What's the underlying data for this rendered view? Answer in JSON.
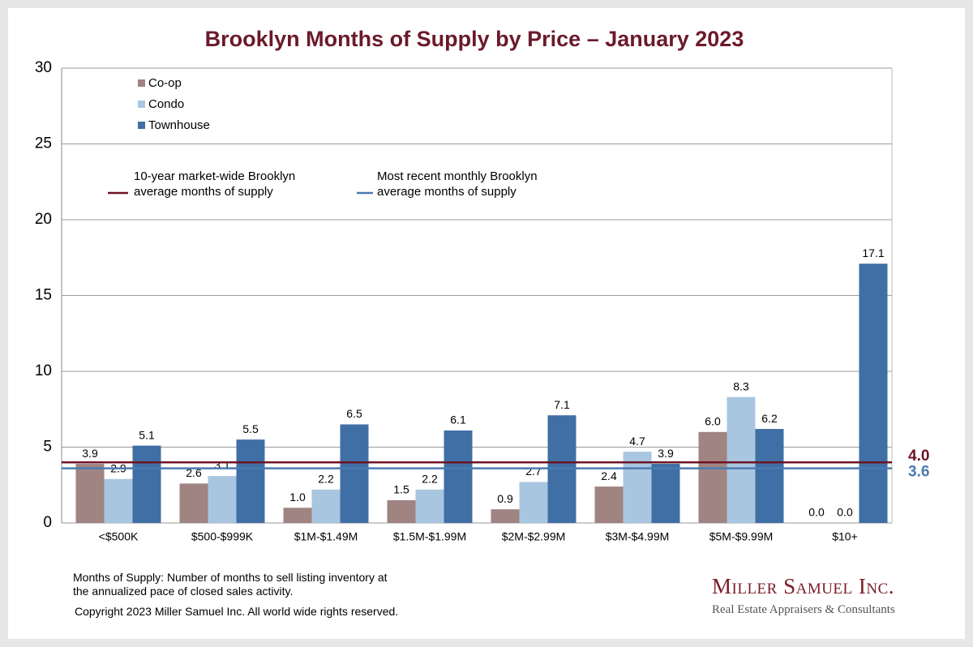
{
  "chart_data": {
    "type": "bar",
    "title": "Brooklyn Months of Supply by Price – January 2023",
    "categories": [
      "<$500K",
      "$500-$999K",
      "$1M-$1.49M",
      "$1.5M-$1.99M",
      "$2M-$2.99M",
      "$3M-$4.99M",
      "$5M-$9.99M",
      "$10+"
    ],
    "series": [
      {
        "name": "Co-op",
        "color": "#a08482",
        "values": [
          3.9,
          2.6,
          1.0,
          1.5,
          0.9,
          2.4,
          6.0,
          0.0
        ],
        "value_labels": [
          "3.9",
          "2.6",
          "1.0",
          "1.5",
          "0.9",
          "2.4",
          "6.0",
          "0.0"
        ]
      },
      {
        "name": "Condo",
        "color": "#a9c6e0",
        "values": [
          2.9,
          3.1,
          2.2,
          2.2,
          2.7,
          4.7,
          8.3,
          0.0
        ],
        "value_labels": [
          "2.9",
          "3.1",
          "2.2",
          "2.2",
          "2.7",
          "4.7",
          "8.3",
          "0.0"
        ]
      },
      {
        "name": "Townhouse",
        "color": "#3f6fa5",
        "values": [
          5.1,
          5.5,
          6.5,
          6.1,
          7.1,
          3.9,
          6.2,
          17.1
        ],
        "value_labels": [
          "5.1",
          "5.5",
          "6.5",
          "6.1",
          "7.1",
          "3.9",
          "6.2",
          "17.1"
        ]
      }
    ],
    "reference_lines": [
      {
        "name": "10-year market-wide Brooklyn average months of supply",
        "value": 4.0,
        "label": "4.0",
        "color": "#6e1423"
      },
      {
        "name": "Most recent monthly Brooklyn average months of supply",
        "value": 3.6,
        "label": "3.6",
        "color": "#4a7bb0"
      }
    ],
    "ylim": [
      0,
      30
    ],
    "yticks": [
      0,
      5,
      10,
      15,
      20,
      25,
      30
    ],
    "grid": true,
    "footnote": [
      "Months of Supply: Number of months to sell listing inventory at",
      "the annualized pace of closed sales activity."
    ],
    "copyright": "Copyright 2023 Miller Samuel Inc.  All world wide rights reserved.",
    "logo": {
      "name": "Miller Samuel Inc.",
      "tagline": "Real Estate Appraisers & Consultants"
    }
  }
}
